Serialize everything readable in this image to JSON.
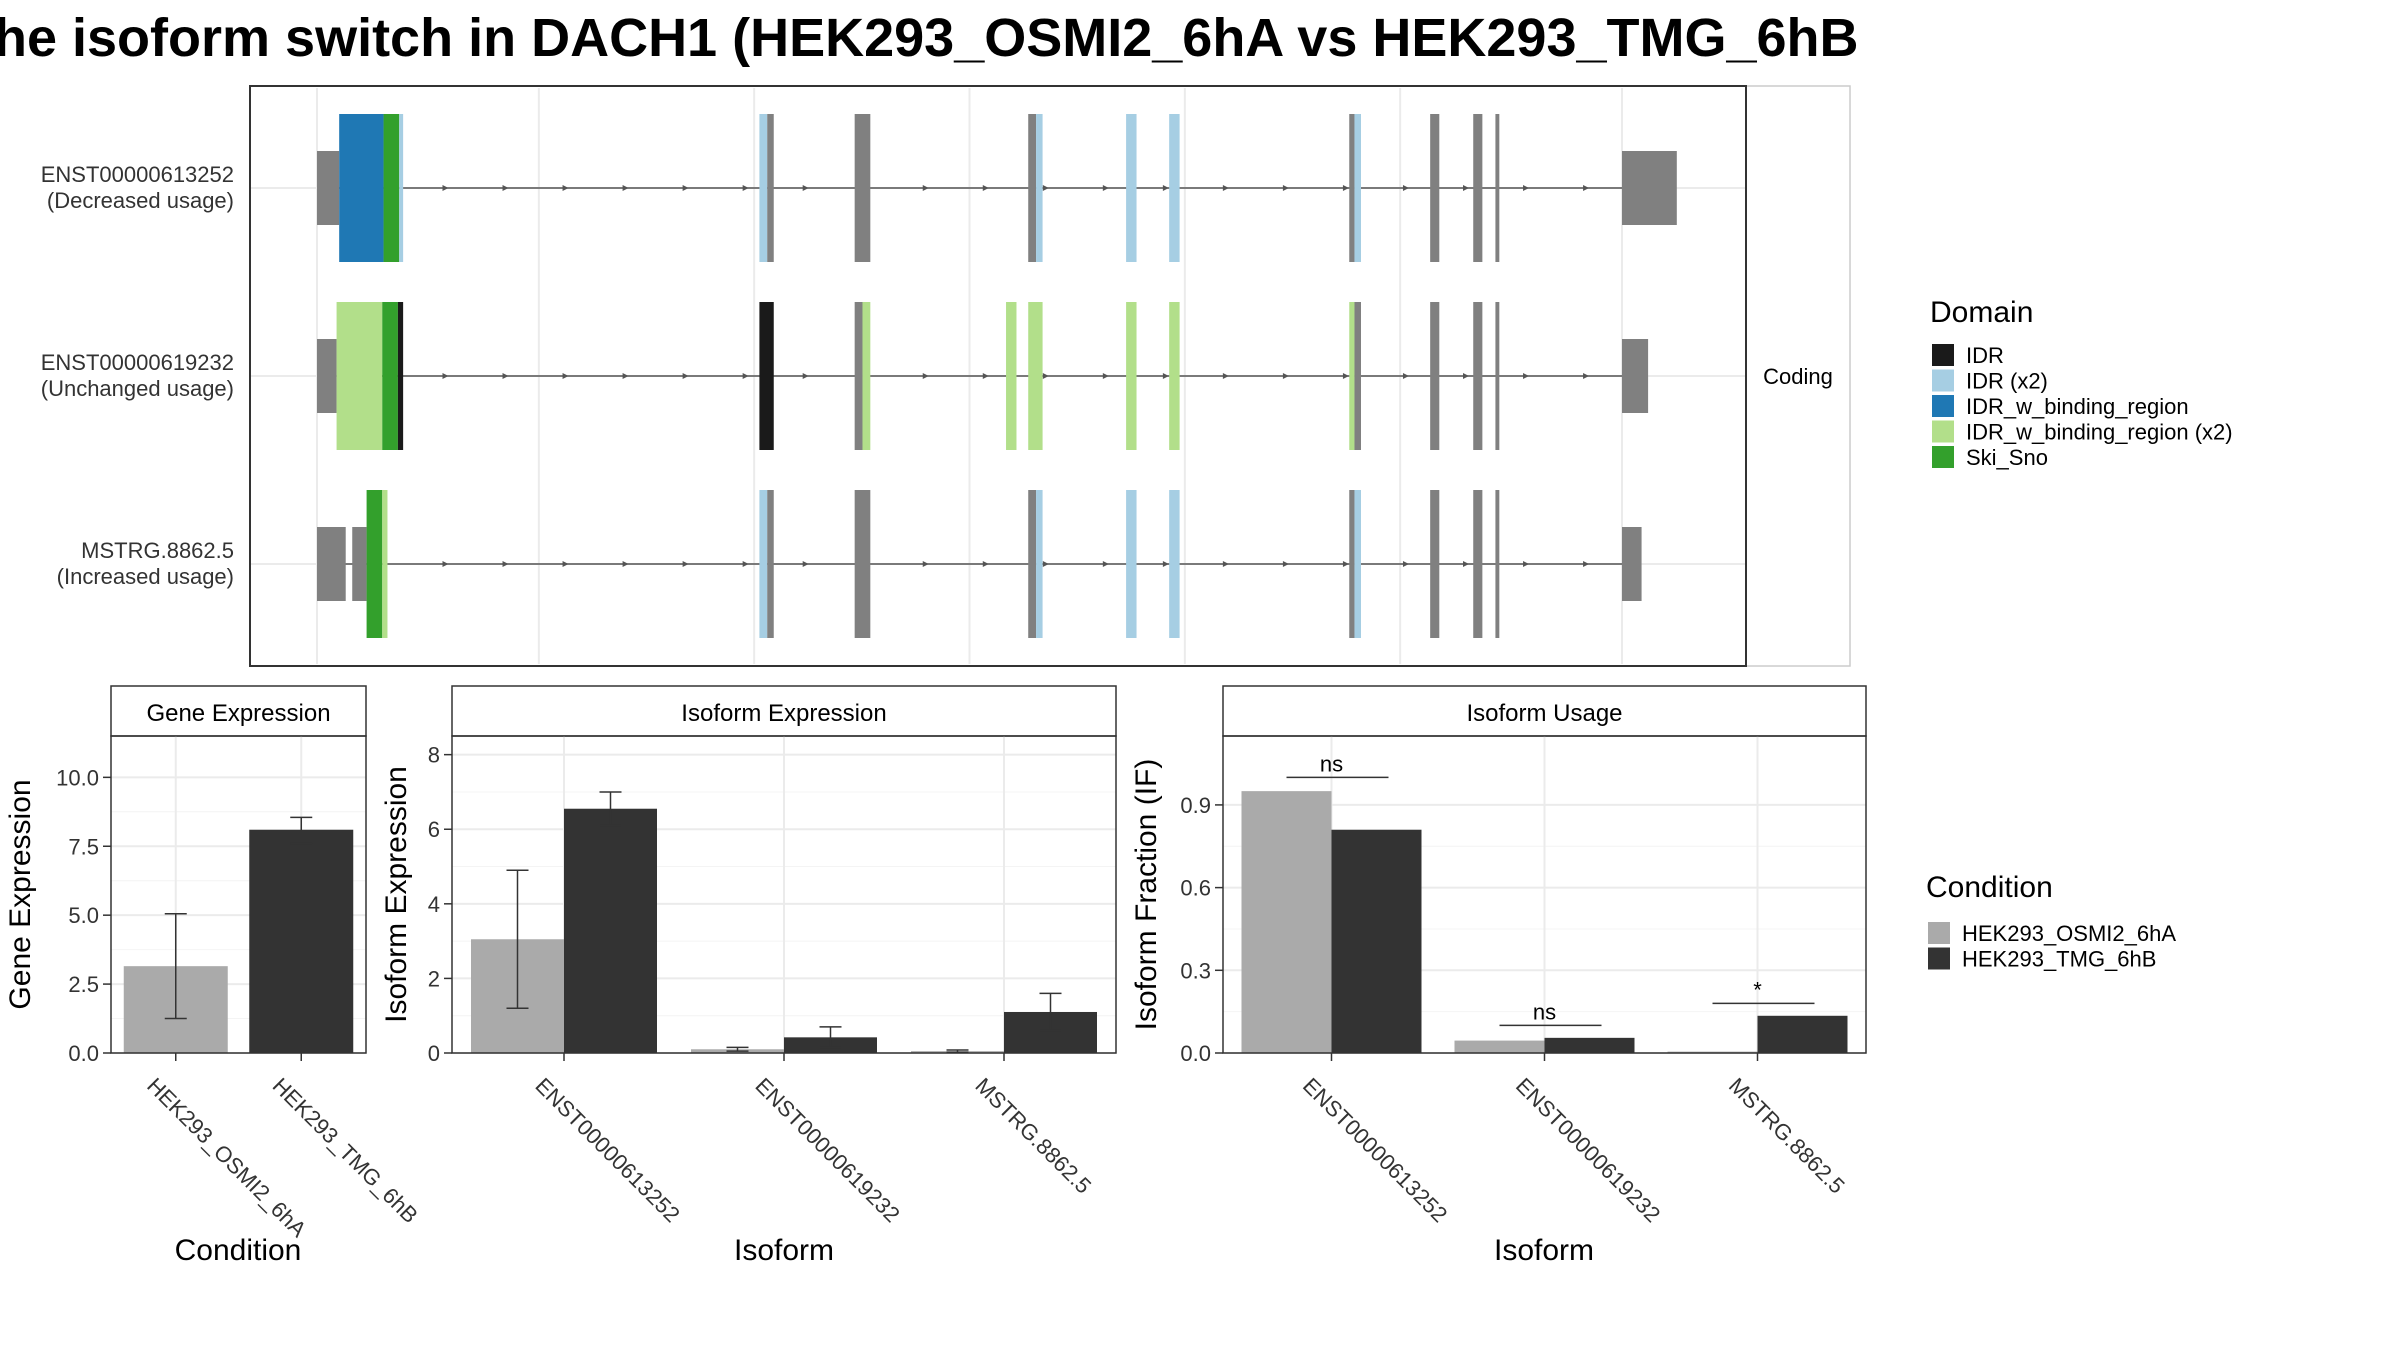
{
  "title": "he isoform switch in DACH1 (HEK293_OSMI2_6hA vs HEK293_TMG_6hB",
  "colors": {
    "intron": "#555555",
    "exon": "#808080",
    "domain_IDR": "#1a1a1a",
    "domain_IDR_x2": "#a6cee3",
    "domain_IDR_w_binding_region": "#1f78b4",
    "domain_IDR_w_binding_region_x2": "#b2df8a",
    "domain_Ski_Sno": "#33a02c",
    "cond_A": "#aaaaaa",
    "cond_B": "#333333"
  },
  "structure": {
    "facet_label": "Coding",
    "rows": [
      {
        "id": "ENST00000613252",
        "usage": "(Decreased usage)",
        "segments": [
          {
            "start": 0,
            "end": 0.017,
            "color": "exon",
            "tall": false
          },
          {
            "start": 0.017,
            "end": 0.051,
            "color": "domain_IDR_w_binding_region",
            "tall": true
          },
          {
            "start": 0.051,
            "end": 0.063,
            "color": "domain_Ski_Sno",
            "tall": true
          },
          {
            "start": 0.063,
            "end": 0.066,
            "color": "domain_IDR_x2",
            "tall": true
          },
          {
            "start": 0.339,
            "end": 0.345,
            "color": "domain_IDR_x2",
            "tall": true
          },
          {
            "start": 0.345,
            "end": 0.35,
            "color": "exon",
            "tall": true
          },
          {
            "start": 0.412,
            "end": 0.424,
            "color": "exon",
            "tall": true
          },
          {
            "start": 0.545,
            "end": 0.551,
            "color": "exon",
            "tall": true
          },
          {
            "start": 0.551,
            "end": 0.556,
            "color": "domain_IDR_x2",
            "tall": true
          },
          {
            "start": 0.62,
            "end": 0.628,
            "color": "domain_IDR_x2",
            "tall": true
          },
          {
            "start": 0.653,
            "end": 0.661,
            "color": "domain_IDR_x2",
            "tall": true
          },
          {
            "start": 0.791,
            "end": 0.795,
            "color": "exon",
            "tall": true
          },
          {
            "start": 0.795,
            "end": 0.8,
            "color": "domain_IDR_x2",
            "tall": true
          },
          {
            "start": 0.853,
            "end": 0.86,
            "color": "exon",
            "tall": true
          },
          {
            "start": 0.886,
            "end": 0.893,
            "color": "exon",
            "tall": true
          },
          {
            "start": 0.903,
            "end": 0.906,
            "color": "exon",
            "tall": true
          },
          {
            "start": 1.0,
            "end": 1.042,
            "color": "exon",
            "tall": false
          }
        ]
      },
      {
        "id": "ENST00000619232",
        "usage": "(Unchanged usage)",
        "segments": [
          {
            "start": 0,
            "end": 0.015,
            "color": "exon",
            "tall": false
          },
          {
            "start": 0.015,
            "end": 0.05,
            "color": "domain_IDR_w_binding_region_x2",
            "tall": true
          },
          {
            "start": 0.05,
            "end": 0.062,
            "color": "domain_Ski_Sno",
            "tall": true
          },
          {
            "start": 0.062,
            "end": 0.066,
            "color": "domain_IDR",
            "tall": true
          },
          {
            "start": 0.339,
            "end": 0.35,
            "color": "domain_IDR",
            "tall": true
          },
          {
            "start": 0.412,
            "end": 0.418,
            "color": "exon",
            "tall": true
          },
          {
            "start": 0.418,
            "end": 0.424,
            "color": "domain_IDR_w_binding_region_x2",
            "tall": true
          },
          {
            "start": 0.528,
            "end": 0.536,
            "color": "domain_IDR_w_binding_region_x2",
            "tall": true
          },
          {
            "start": 0.545,
            "end": 0.556,
            "color": "domain_IDR_w_binding_region_x2",
            "tall": true
          },
          {
            "start": 0.62,
            "end": 0.628,
            "color": "domain_IDR_w_binding_region_x2",
            "tall": true
          },
          {
            "start": 0.653,
            "end": 0.661,
            "color": "domain_IDR_w_binding_region_x2",
            "tall": true
          },
          {
            "start": 0.791,
            "end": 0.795,
            "color": "domain_IDR_w_binding_region_x2",
            "tall": true
          },
          {
            "start": 0.795,
            "end": 0.8,
            "color": "exon",
            "tall": true
          },
          {
            "start": 0.853,
            "end": 0.86,
            "color": "exon",
            "tall": true
          },
          {
            "start": 0.886,
            "end": 0.893,
            "color": "exon",
            "tall": true
          },
          {
            "start": 0.903,
            "end": 0.906,
            "color": "exon",
            "tall": true
          },
          {
            "start": 1.0,
            "end": 1.02,
            "color": "exon",
            "tall": false
          }
        ]
      },
      {
        "id": "MSTRG.8862.5",
        "usage": "(Increased usage)",
        "segments": [
          {
            "start": 0,
            "end": 0.022,
            "color": "exon",
            "tall": false
          },
          {
            "start": 0.027,
            "end": 0.038,
            "color": "exon",
            "tall": false
          },
          {
            "start": 0.038,
            "end": 0.05,
            "color": "domain_Ski_Sno",
            "tall": true
          },
          {
            "start": 0.05,
            "end": 0.054,
            "color": "domain_IDR_w_binding_region_x2",
            "tall": true
          },
          {
            "start": 0.339,
            "end": 0.345,
            "color": "domain_IDR_x2",
            "tall": true
          },
          {
            "start": 0.345,
            "end": 0.35,
            "color": "exon",
            "tall": true
          },
          {
            "start": 0.412,
            "end": 0.424,
            "color": "exon",
            "tall": true
          },
          {
            "start": 0.545,
            "end": 0.551,
            "color": "exon",
            "tall": true
          },
          {
            "start": 0.551,
            "end": 0.556,
            "color": "domain_IDR_x2",
            "tall": true
          },
          {
            "start": 0.62,
            "end": 0.628,
            "color": "domain_IDR_x2",
            "tall": true
          },
          {
            "start": 0.653,
            "end": 0.661,
            "color": "domain_IDR_x2",
            "tall": true
          },
          {
            "start": 0.791,
            "end": 0.795,
            "color": "exon",
            "tall": true
          },
          {
            "start": 0.795,
            "end": 0.8,
            "color": "domain_IDR_x2",
            "tall": true
          },
          {
            "start": 0.853,
            "end": 0.86,
            "color": "exon",
            "tall": true
          },
          {
            "start": 0.886,
            "end": 0.893,
            "color": "exon",
            "tall": true
          },
          {
            "start": 0.903,
            "end": 0.906,
            "color": "exon",
            "tall": true
          },
          {
            "start": 1.0,
            "end": 1.015,
            "color": "exon",
            "tall": false
          }
        ]
      }
    ]
  },
  "legend_domain": {
    "title": "Domain",
    "items": [
      {
        "label": "IDR",
        "color": "domain_IDR"
      },
      {
        "label": "IDR (x2)",
        "color": "domain_IDR_x2"
      },
      {
        "label": "IDR_w_binding_region",
        "color": "domain_IDR_w_binding_region"
      },
      {
        "label": "IDR_w_binding_region (x2)",
        "color": "domain_IDR_w_binding_region_x2"
      },
      {
        "label": "Ski_Sno",
        "color": "domain_Ski_Sno"
      }
    ]
  },
  "legend_condition": {
    "title": "Condition",
    "items": [
      {
        "label": "HEK293_OSMI2_6hA",
        "color": "cond_A"
      },
      {
        "label": "HEK293_TMG_6hB",
        "color": "cond_B"
      }
    ]
  },
  "chart_data": [
    {
      "type": "bar",
      "title": "Gene Expression",
      "xlabel": "Condition",
      "ylabel": "Gene Expression",
      "ylim": [
        0,
        11.5
      ],
      "yticks": [
        {
          "value": 0,
          "label": "0.0"
        },
        {
          "value": 2.5,
          "label": "2.5"
        },
        {
          "value": 5,
          "label": "5.0"
        },
        {
          "value": 7.5,
          "label": "7.5"
        },
        {
          "value": 10,
          "label": "10.0"
        }
      ],
      "categories": [
        "HEK293_OSMI2_6hA",
        "HEK293_TMG_6hB"
      ],
      "bars": [
        {
          "value": 3.15,
          "err": [
            1.25,
            5.05
          ],
          "color": "cond_A"
        },
        {
          "value": 8.1,
          "err": [
            7.6,
            8.55
          ],
          "color": "cond_B"
        }
      ]
    },
    {
      "type": "bar",
      "title": "Isoform Expression",
      "xlabel": "Isoform",
      "ylabel": "Isoform Expression",
      "ylim": [
        0,
        8.5
      ],
      "yticks": [
        {
          "value": 0,
          "label": "0"
        },
        {
          "value": 2,
          "label": "2"
        },
        {
          "value": 4,
          "label": "4"
        },
        {
          "value": 6,
          "label": "6"
        },
        {
          "value": 8,
          "label": "8"
        }
      ],
      "categories": [
        "ENST00000613252",
        "ENST00000619232",
        "MSTRG.8862.5"
      ],
      "series": [
        {
          "name": "HEK293_OSMI2_6hA",
          "color": "cond_A",
          "values": [
            3.05,
            0.1,
            0.05
          ],
          "err": [
            [
              1.2,
              4.9
            ],
            [
              0.05,
              0.15
            ],
            [
              0.02,
              0.08
            ]
          ]
        },
        {
          "name": "HEK293_TMG_6hB",
          "color": "cond_B",
          "values": [
            6.55,
            0.42,
            1.1
          ],
          "err": [
            [
              6.1,
              7.0
            ],
            [
              0.15,
              0.7
            ],
            [
              0.6,
              1.6
            ]
          ]
        }
      ]
    },
    {
      "type": "bar",
      "title": "Isoform Usage",
      "xlabel": "Isoform",
      "ylabel": "Isoform Fraction (IF)",
      "ylim": [
        0,
        1.15
      ],
      "yticks": [
        {
          "value": 0,
          "label": "0.0"
        },
        {
          "value": 0.3,
          "label": "0.3"
        },
        {
          "value": 0.6,
          "label": "0.6"
        },
        {
          "value": 0.9,
          "label": "0.9"
        }
      ],
      "categories": [
        "ENST00000613252",
        "ENST00000619232",
        "MSTRG.8862.5"
      ],
      "series": [
        {
          "name": "HEK293_OSMI2_6hA",
          "color": "cond_A",
          "values": [
            0.95,
            0.045,
            0.005
          ]
        },
        {
          "name": "HEK293_TMG_6hB",
          "color": "cond_B",
          "values": [
            0.81,
            0.055,
            0.135
          ]
        }
      ],
      "significance": [
        {
          "label": "ns",
          "y": 1.0
        },
        {
          "label": "ns",
          "y": 0.1
        },
        {
          "label": "*",
          "y": 0.18
        }
      ]
    }
  ]
}
